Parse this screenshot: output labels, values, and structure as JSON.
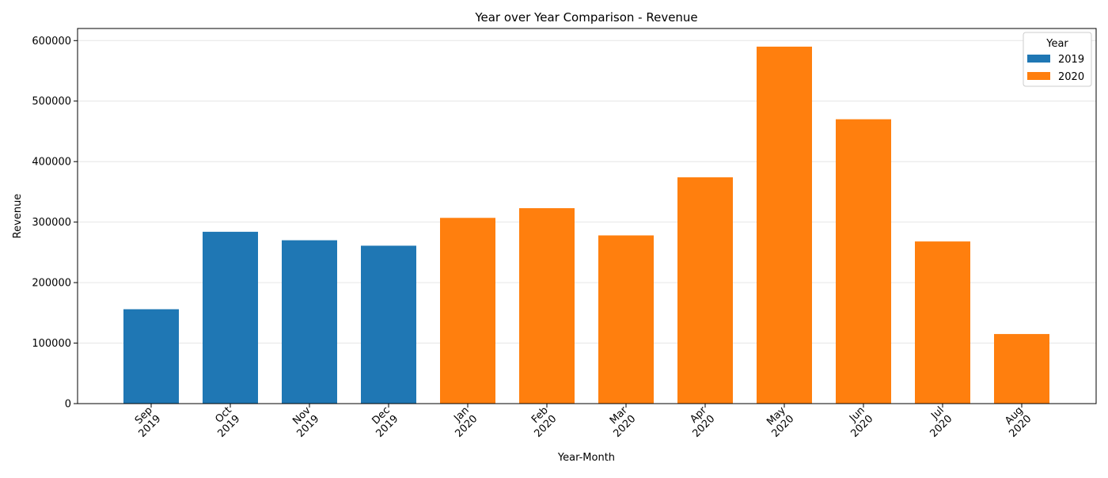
{
  "chart_data": {
    "type": "bar",
    "title": "Year over Year Comparison - Revenue",
    "xlabel": "Year-Month",
    "ylabel": "Revenue",
    "ylim": [
      0,
      620000
    ],
    "yticks": [
      "0",
      "100000",
      "200000",
      "300000",
      "400000",
      "500000",
      "600000"
    ],
    "ytick_values": [
      0,
      100000,
      200000,
      300000,
      400000,
      500000,
      600000
    ],
    "grid": "horizontal",
    "legend": {
      "title": "Year",
      "placement": "top-right",
      "entries": [
        {
          "label": "2019",
          "color": "#1f77b4"
        },
        {
          "label": "2020",
          "color": "#ff7f0e"
        }
      ]
    },
    "categories": [
      {
        "month": "Sep",
        "year": "2019"
      },
      {
        "month": "Oct",
        "year": "2019"
      },
      {
        "month": "Nov",
        "year": "2019"
      },
      {
        "month": "Dec",
        "year": "2019"
      },
      {
        "month": "Jan",
        "year": "2020"
      },
      {
        "month": "Feb",
        "year": "2020"
      },
      {
        "month": "Mar",
        "year": "2020"
      },
      {
        "month": "Apr",
        "year": "2020"
      },
      {
        "month": "May",
        "year": "2020"
      },
      {
        "month": "Jun",
        "year": "2020"
      },
      {
        "month": "Jul",
        "year": "2020"
      },
      {
        "month": "Aug",
        "year": "2020"
      }
    ],
    "series": [
      {
        "name": "2019",
        "color": "#1f77b4",
        "values": [
          156000,
          284000,
          270000,
          261000,
          null,
          null,
          null,
          null,
          null,
          null,
          null,
          null
        ]
      },
      {
        "name": "2020",
        "color": "#ff7f0e",
        "values": [
          null,
          null,
          null,
          null,
          307000,
          323000,
          278000,
          374000,
          590000,
          470000,
          268000,
          115000
        ]
      }
    ]
  }
}
